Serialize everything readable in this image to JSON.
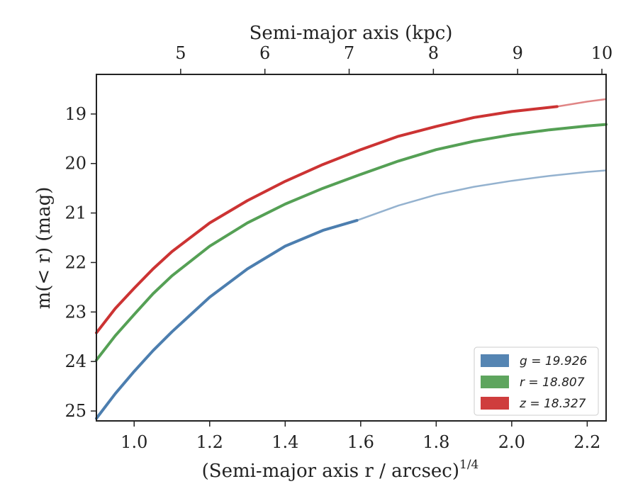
{
  "chart_data": {
    "type": "line",
    "title": "",
    "xlabel": "(Semi-major axis r / arcsec)",
    "xlabel_exponent": "1/4",
    "ylabel": "m(< r) (mag)",
    "top_xlabel": "Semi-major axis (kpc)",
    "xlim": [
      0.9,
      2.25
    ],
    "ylim": [
      25.2,
      18.2
    ],
    "y_inverted": true,
    "top_xlim_kpc": [
      4.0,
      10.05
    ],
    "x_ticks": [
      1.0,
      1.2,
      1.4,
      1.6,
      1.8,
      2.0,
      2.2
    ],
    "x_tick_labels": [
      "1.0",
      "1.2",
      "1.4",
      "1.6",
      "1.8",
      "2.0",
      "2.2"
    ],
    "y_ticks": [
      19,
      20,
      21,
      22,
      23,
      24,
      25
    ],
    "y_tick_labels": [
      "19",
      "20",
      "21",
      "22",
      "23",
      "24",
      "25"
    ],
    "top_ticks": [
      5,
      6,
      7,
      8,
      9,
      10
    ],
    "top_tick_labels": [
      "5",
      "6",
      "7",
      "8",
      "9",
      "10"
    ],
    "grid": false,
    "legend_position": "lower-right",
    "series": [
      {
        "name": "g = 19.926",
        "color": "#4c7eaf",
        "measured_until_x": 1.59,
        "x": [
          0.9,
          0.95,
          1.0,
          1.05,
          1.1,
          1.2,
          1.3,
          1.4,
          1.5,
          1.59,
          1.7,
          1.8,
          1.9,
          2.0,
          2.1,
          2.2,
          2.25
        ],
        "y": [
          25.15,
          24.65,
          24.2,
          23.78,
          23.4,
          22.7,
          22.13,
          21.67,
          21.35,
          21.15,
          20.85,
          20.63,
          20.47,
          20.35,
          20.25,
          20.17,
          20.14
        ]
      },
      {
        "name": "r = 18.807",
        "color": "#55a055",
        "measured_until_x": 2.25,
        "x": [
          0.9,
          0.95,
          1.0,
          1.05,
          1.1,
          1.2,
          1.3,
          1.4,
          1.5,
          1.6,
          1.7,
          1.8,
          1.9,
          2.0,
          2.1,
          2.2,
          2.25
        ],
        "y": [
          23.97,
          23.48,
          23.05,
          22.63,
          22.27,
          21.67,
          21.2,
          20.82,
          20.5,
          20.22,
          19.95,
          19.72,
          19.55,
          19.42,
          19.32,
          19.24,
          19.21
        ]
      },
      {
        "name": "z = 18.327",
        "color": "#cc3333",
        "measured_until_x": 2.12,
        "x": [
          0.9,
          0.95,
          1.0,
          1.05,
          1.1,
          1.2,
          1.3,
          1.4,
          1.5,
          1.6,
          1.7,
          1.8,
          1.9,
          2.0,
          2.12,
          2.2,
          2.25
        ],
        "y": [
          23.42,
          22.93,
          22.52,
          22.13,
          21.78,
          21.2,
          20.75,
          20.36,
          20.02,
          19.72,
          19.45,
          19.25,
          19.07,
          18.95,
          18.85,
          18.75,
          18.7
        ]
      }
    ]
  }
}
